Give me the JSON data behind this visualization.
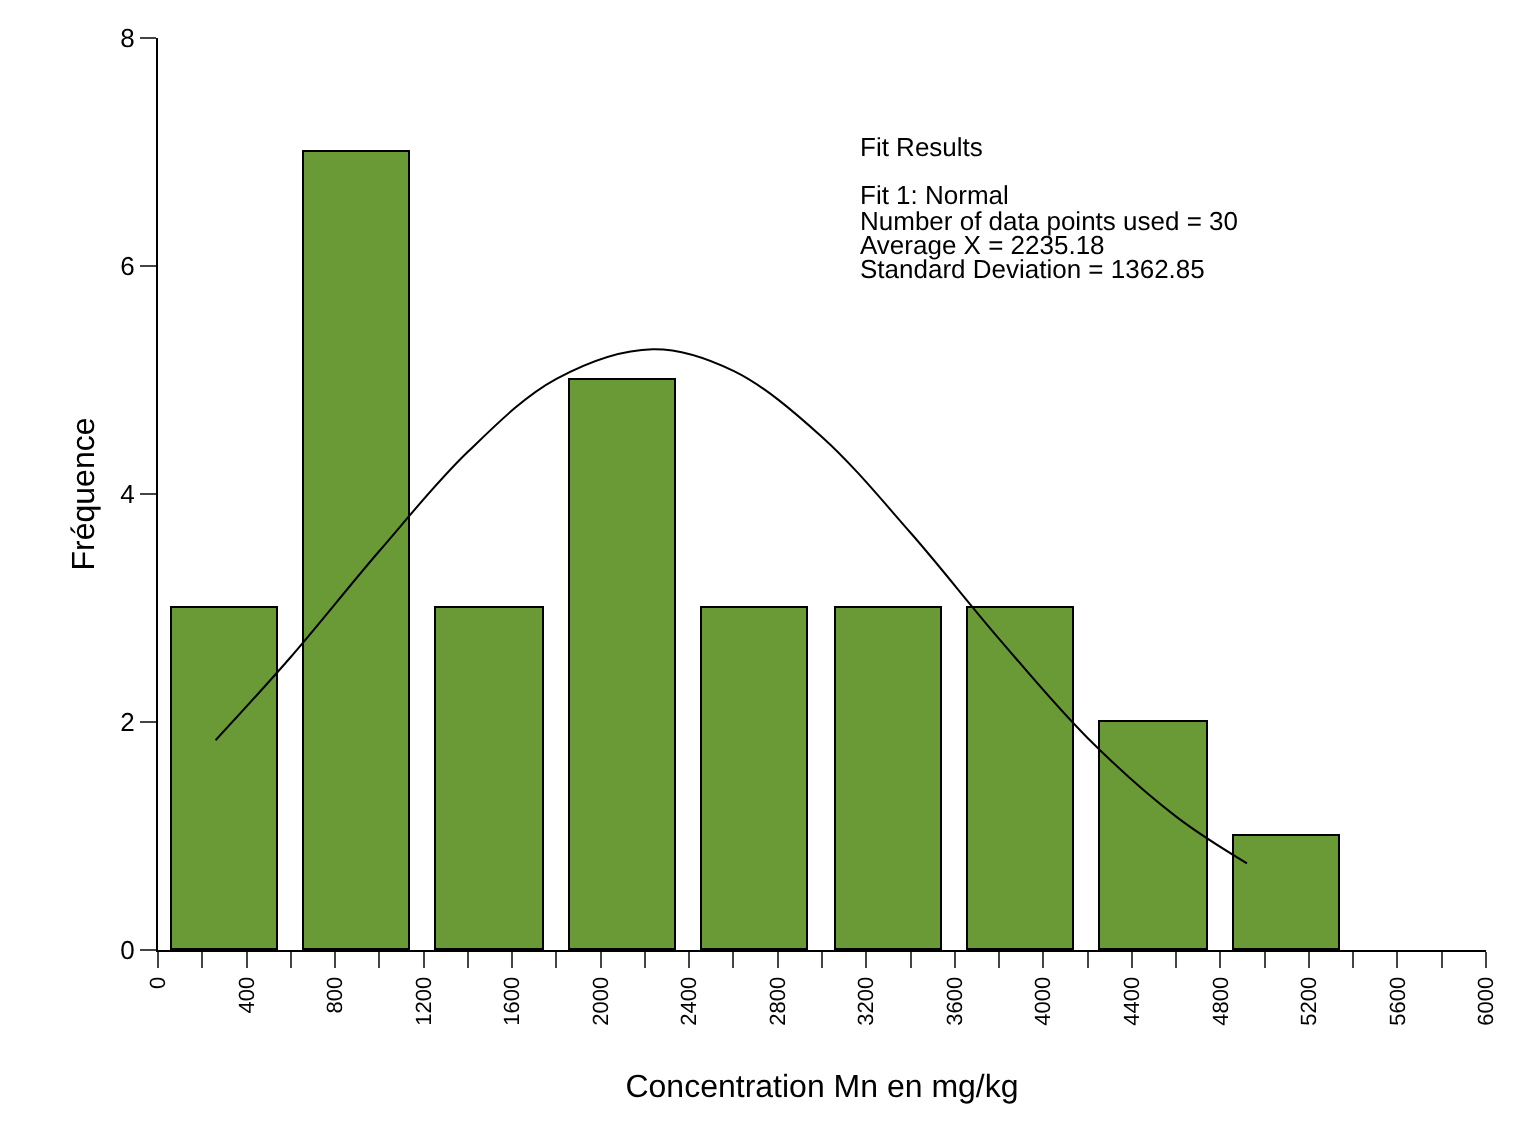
{
  "chart_data": {
    "type": "histogram",
    "xlabel": "Concentration Mn en mg/kg",
    "ylabel": "Fréquence",
    "bins": [
      0,
      600,
      1200,
      1800,
      2400,
      3000,
      3600,
      4200,
      4800,
      5400
    ],
    "values": [
      3,
      7,
      3,
      5,
      3,
      3,
      3,
      2,
      1
    ],
    "color": "#6a9a35",
    "series": [
      {
        "type": "line",
        "color": "#000000",
        "x": [
          260,
          600,
          1000,
          1400,
          1800,
          2235,
          2600,
          3000,
          3400,
          3800,
          4200,
          4600,
          4920
        ],
        "values": [
          1.84,
          2.57,
          3.5,
          4.37,
          5.01,
          5.27,
          5.08,
          4.5,
          3.66,
          2.73,
          1.86,
          1.17,
          0.76
        ]
      }
    ],
    "annotations": [
      "Fit Results",
      "Fit 1: Normal",
      "Number of data points used = 30",
      "Average X = 2235.18",
      "Standard Deviation = 1362.85"
    ],
    "xlim": [
      0,
      6000
    ],
    "xticks": [
      0,
      {
        "value": 200,
        "label": null
      },
      400,
      {
        "value": 600,
        "label": null
      },
      800,
      {
        "value": 1000,
        "label": null
      },
      1200,
      {
        "value": 1400,
        "label": null
      },
      1600,
      {
        "value": 1800,
        "label": null
      },
      2000,
      {
        "value": 2200,
        "label": null
      },
      2400,
      {
        "value": 2600,
        "label": null
      },
      2800,
      {
        "value": 3000,
        "label": null
      },
      3200,
      {
        "value": 3400,
        "label": null
      },
      3600,
      {
        "value": 3800,
        "label": null
      },
      4000,
      {
        "value": 4200,
        "label": null
      },
      4400,
      {
        "value": 4600,
        "label": null
      },
      4800,
      {
        "value": 5000,
        "label": null
      },
      5200,
      {
        "value": 5400,
        "label": null
      },
      5600,
      {
        "value": 5800,
        "label": null
      },
      6000
    ],
    "ylim": [
      0,
      8
    ],
    "yticks": [
      0,
      2,
      4,
      6,
      8
    ]
  }
}
